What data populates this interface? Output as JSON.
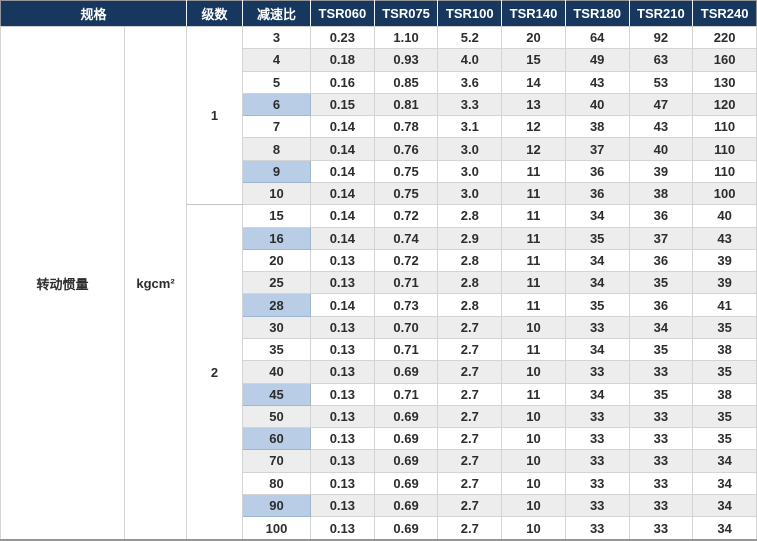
{
  "table": {
    "header": {
      "spec": "规格",
      "stages": "级数",
      "ratio": "减速比",
      "models": [
        "TSR060",
        "TSR075",
        "TSR100",
        "TSR140",
        "TSR180",
        "TSR210",
        "TSR240"
      ]
    },
    "spec_row_label": "转动惯量",
    "unit": "kgcm²",
    "groups": [
      {
        "stages": "1",
        "rows": [
          {
            "ratio": "3",
            "highlight": false,
            "values": [
              "0.23",
              "1.10",
              "5.2",
              "20",
              "64",
              "92",
              "220"
            ]
          },
          {
            "ratio": "4",
            "highlight": false,
            "values": [
              "0.18",
              "0.93",
              "4.0",
              "15",
              "49",
              "63",
              "160"
            ]
          },
          {
            "ratio": "5",
            "highlight": false,
            "values": [
              "0.16",
              "0.85",
              "3.6",
              "14",
              "43",
              "53",
              "130"
            ]
          },
          {
            "ratio": "6",
            "highlight": true,
            "values": [
              "0.15",
              "0.81",
              "3.3",
              "13",
              "40",
              "47",
              "120"
            ]
          },
          {
            "ratio": "7",
            "highlight": false,
            "values": [
              "0.14",
              "0.78",
              "3.1",
              "12",
              "38",
              "43",
              "110"
            ]
          },
          {
            "ratio": "8",
            "highlight": false,
            "values": [
              "0.14",
              "0.76",
              "3.0",
              "12",
              "37",
              "40",
              "110"
            ]
          },
          {
            "ratio": "9",
            "highlight": true,
            "values": [
              "0.14",
              "0.75",
              "3.0",
              "11",
              "36",
              "39",
              "110"
            ]
          },
          {
            "ratio": "10",
            "highlight": false,
            "values": [
              "0.14",
              "0.75",
              "3.0",
              "11",
              "36",
              "38",
              "100"
            ]
          }
        ]
      },
      {
        "stages": "2",
        "rows": [
          {
            "ratio": "15",
            "highlight": false,
            "values": [
              "0.14",
              "0.72",
              "2.8",
              "11",
              "34",
              "36",
              "40"
            ]
          },
          {
            "ratio": "16",
            "highlight": true,
            "values": [
              "0.14",
              "0.74",
              "2.9",
              "11",
              "35",
              "37",
              "43"
            ]
          },
          {
            "ratio": "20",
            "highlight": false,
            "values": [
              "0.13",
              "0.72",
              "2.8",
              "11",
              "34",
              "36",
              "39"
            ]
          },
          {
            "ratio": "25",
            "highlight": false,
            "values": [
              "0.13",
              "0.71",
              "2.8",
              "11",
              "34",
              "35",
              "39"
            ]
          },
          {
            "ratio": "28",
            "highlight": true,
            "values": [
              "0.14",
              "0.73",
              "2.8",
              "11",
              "35",
              "36",
              "41"
            ]
          },
          {
            "ratio": "30",
            "highlight": false,
            "values": [
              "0.13",
              "0.70",
              "2.7",
              "10",
              "33",
              "34",
              "35"
            ]
          },
          {
            "ratio": "35",
            "highlight": false,
            "values": [
              "0.13",
              "0.71",
              "2.7",
              "11",
              "34",
              "35",
              "38"
            ]
          },
          {
            "ratio": "40",
            "highlight": false,
            "values": [
              "0.13",
              "0.69",
              "2.7",
              "10",
              "33",
              "33",
              "35"
            ]
          },
          {
            "ratio": "45",
            "highlight": true,
            "values": [
              "0.13",
              "0.71",
              "2.7",
              "11",
              "34",
              "35",
              "38"
            ]
          },
          {
            "ratio": "50",
            "highlight": false,
            "values": [
              "0.13",
              "0.69",
              "2.7",
              "10",
              "33",
              "33",
              "35"
            ]
          },
          {
            "ratio": "60",
            "highlight": true,
            "values": [
              "0.13",
              "0.69",
              "2.7",
              "10",
              "33",
              "33",
              "35"
            ]
          },
          {
            "ratio": "70",
            "highlight": false,
            "values": [
              "0.13",
              "0.69",
              "2.7",
              "10",
              "33",
              "33",
              "34"
            ]
          },
          {
            "ratio": "80",
            "highlight": false,
            "values": [
              "0.13",
              "0.69",
              "2.7",
              "10",
              "33",
              "33",
              "34"
            ]
          },
          {
            "ratio": "90",
            "highlight": true,
            "values": [
              "0.13",
              "0.69",
              "2.7",
              "10",
              "33",
              "33",
              "34"
            ]
          },
          {
            "ratio": "100",
            "highlight": false,
            "values": [
              "0.13",
              "0.69",
              "2.7",
              "10",
              "33",
              "33",
              "34"
            ]
          }
        ]
      }
    ],
    "colors": {
      "header_bg": "#17375e",
      "header_text": "#ffffff",
      "stripe_bg": "#ededed",
      "highlight_bg": "#b9cde6",
      "body_text": "#2d2d2d",
      "border": "#d4d4d4"
    }
  }
}
